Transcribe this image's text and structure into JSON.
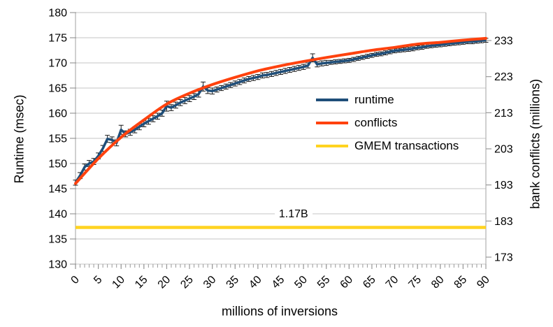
{
  "chart_data": {
    "type": "line",
    "title": "",
    "x_axis": {
      "label": "millions of inversions",
      "range": [
        0,
        90
      ],
      "tick_labels": [
        0,
        5,
        10,
        15,
        20,
        25,
        30,
        35,
        40,
        45,
        50,
        55,
        60,
        65,
        70,
        75,
        80,
        85,
        90
      ],
      "minor_tick_step": 1
    },
    "y_left": {
      "label": "Runtime (msec)",
      "range": [
        130,
        180
      ],
      "ticks": [
        130,
        135,
        140,
        145,
        150,
        155,
        160,
        165,
        170,
        175,
        180
      ]
    },
    "y_right": {
      "label": "bank conflicts (millions)",
      "ticks": [
        173,
        183,
        193,
        203,
        213,
        223,
        233
      ]
    },
    "grid": "horizontal",
    "legend_position": "inside-right",
    "style": {
      "grid_color": "#c6c6c6",
      "axis_color": "#b0b0b0",
      "tick_color": "#999999",
      "error_bar_color": "#1a1a1a",
      "text_color": "#000000"
    },
    "series": [
      {
        "name": "runtime",
        "axis": "left",
        "color": "#1f4e79",
        "line_width": 3.5,
        "error_bars": true,
        "x_start": 0,
        "x_step": 1,
        "y": [
          146.2,
          147.6,
          149.3,
          150.0,
          150.4,
          151.5,
          153.0,
          154.9,
          154.7,
          154.1,
          156.7,
          155.9,
          156.2,
          156.7,
          157.3,
          157.9,
          158.4,
          158.9,
          159.4,
          160.0,
          161.4,
          161.1,
          161.6,
          162.1,
          162.5,
          162.9,
          163.3,
          163.8,
          165.3,
          164.5,
          164.4,
          164.7,
          165.0,
          165.3,
          165.6,
          165.9,
          166.2,
          166.5,
          166.8,
          167.0,
          167.2,
          167.5,
          167.6,
          167.8,
          168.0,
          168.2,
          168.4,
          168.6,
          168.8,
          169.0,
          169.2,
          169.5,
          171.0,
          169.7,
          169.9,
          170.0,
          170.1,
          170.2,
          170.3,
          170.4,
          170.5,
          170.7,
          170.9,
          171.1,
          171.3,
          171.5,
          171.7,
          171.8,
          172.0,
          172.2,
          172.4,
          172.5,
          172.6,
          172.7,
          172.8,
          173.0,
          173.1,
          173.3,
          173.4,
          173.5,
          173.6,
          173.7,
          173.8,
          173.9,
          174.0,
          174.1,
          174.2,
          174.2,
          174.3,
          174.4,
          174.5
        ],
        "err": [
          0.5,
          0.6,
          0.6,
          0.6,
          0.6,
          0.6,
          0.6,
          0.7,
          0.6,
          0.6,
          0.9,
          0.6,
          0.6,
          0.6,
          0.6,
          0.6,
          0.6,
          0.6,
          0.6,
          0.6,
          1.0,
          0.6,
          0.6,
          0.6,
          0.6,
          0.6,
          0.6,
          0.6,
          0.9,
          0.6,
          0.6,
          0.5,
          0.5,
          0.5,
          0.5,
          0.5,
          0.5,
          0.5,
          0.5,
          0.5,
          0.5,
          0.5,
          0.5,
          0.5,
          0.5,
          0.5,
          0.5,
          0.5,
          0.5,
          0.5,
          0.5,
          0.5,
          0.8,
          0.5,
          0.5,
          0.5,
          0.4,
          0.4,
          0.4,
          0.4,
          0.4,
          0.4,
          0.4,
          0.4,
          0.4,
          0.4,
          0.4,
          0.4,
          0.4,
          0.4,
          0.4,
          0.4,
          0.4,
          0.4,
          0.4,
          0.4,
          0.4,
          0.4,
          0.4,
          0.4,
          0.4,
          0.4,
          0.4,
          0.4,
          0.4,
          0.4,
          0.4,
          0.4,
          0.4,
          0.4,
          0.4
        ]
      },
      {
        "name": "conflicts",
        "axis": "right",
        "color": "#ff420e",
        "line_width": 4,
        "smooth": true,
        "x": [
          0,
          5,
          10,
          15,
          20,
          25,
          30,
          35,
          40,
          45,
          50,
          55,
          60,
          65,
          70,
          75,
          80,
          85,
          90
        ],
        "y": [
          193.4,
          200.3,
          206.2,
          211.0,
          215.4,
          218.4,
          220.8,
          222.8,
          224.6,
          226.0,
          227.2,
          228.3,
          229.3,
          230.3,
          231.1,
          232.0,
          232.5,
          233.1,
          233.6
        ]
      },
      {
        "name": "GMEM transactions",
        "axis": "left",
        "color": "#ffd320",
        "line_width": 4.5,
        "constant_y": 137.3
      }
    ],
    "annotations": [
      {
        "text": "1.17B",
        "x": 47.8,
        "y": 139.9,
        "refers_to": "GMEM transactions"
      }
    ]
  }
}
